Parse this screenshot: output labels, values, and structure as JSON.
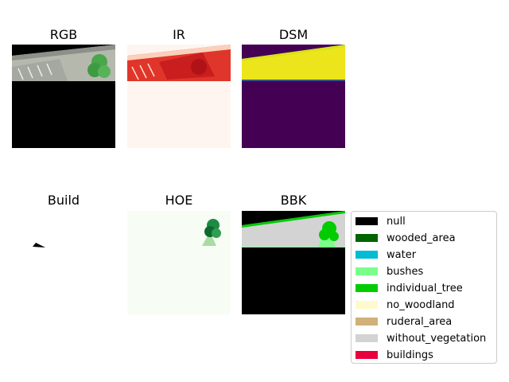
{
  "panels": {
    "rgb": "RGB",
    "ir": "IR",
    "dsm": "DSM",
    "build": "Build",
    "hoe": "HOE",
    "bbk": "BBK"
  },
  "legend": [
    {
      "label": "null",
      "color": "#000000"
    },
    {
      "label": "wooded_area",
      "color": "#006400"
    },
    {
      "label": "water",
      "color": "#00bcd4"
    },
    {
      "label": "bushes",
      "color": "#7cff8a"
    },
    {
      "label": "individual_tree",
      "color": "#00cc00"
    },
    {
      "label": "no_woodland",
      "color": "#fffacd"
    },
    {
      "label": "ruderal_area",
      "color": "#d2b07a"
    },
    {
      "label": "without_vegetation",
      "color": "#d3d3d3"
    },
    {
      "label": "buildings",
      "color": "#e8003d"
    }
  ],
  "chart_data": [
    {
      "type": "heatmap",
      "title": "RGB"
    },
    {
      "type": "heatmap",
      "title": "IR"
    },
    {
      "type": "heatmap",
      "title": "DSM"
    },
    {
      "type": "heatmap",
      "title": "Build"
    },
    {
      "type": "heatmap",
      "title": "HOE"
    },
    {
      "type": "heatmap",
      "title": "BBK",
      "legend": [
        "null",
        "wooded_area",
        "water",
        "bushes",
        "individual_tree",
        "no_woodland",
        "ruderal_area",
        "without_vegetation",
        "buildings"
      ]
    }
  ]
}
